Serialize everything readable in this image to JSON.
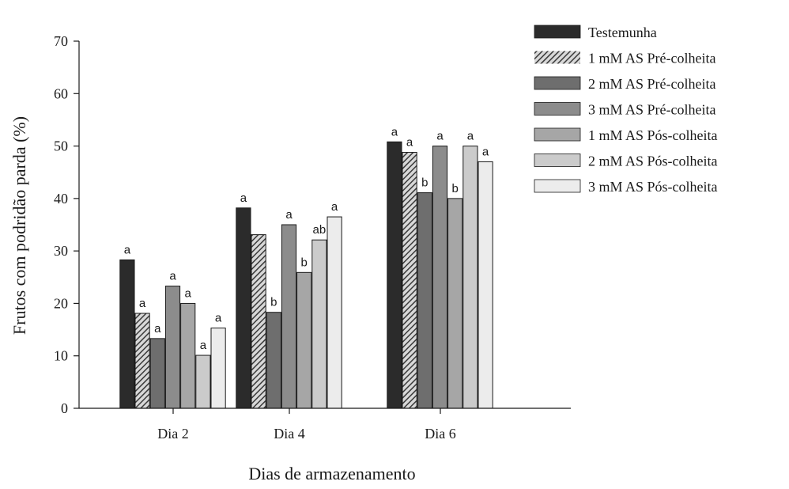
{
  "chart_data": {
    "type": "bar",
    "title": "",
    "xlabel": "Dias de armazenamento",
    "ylabel": "Frutos com podridão parda (%)",
    "ylim": [
      0,
      70
    ],
    "yticks": [
      0,
      10,
      20,
      30,
      40,
      50,
      60,
      70
    ],
    "grid": false,
    "legend_position": "top-right",
    "categories": [
      "Dia 2",
      "Dia 4",
      "Dia 6"
    ],
    "series": [
      {
        "name": "Testemunha",
        "fill": "#2b2b2b",
        "pattern": "solid",
        "values": [
          28.3,
          38.2,
          50.8
        ],
        "labels": [
          "a",
          "a",
          "a"
        ]
      },
      {
        "name": "1 mM AS Pré-colheita",
        "fill": "#555555",
        "pattern": "hatch",
        "values": [
          18.1,
          33.1,
          48.8
        ],
        "labels": [
          "a",
          "",
          "a"
        ]
      },
      {
        "name": "2 mM AS Pré-colheita",
        "fill": "#6e6e6e",
        "pattern": "solid",
        "values": [
          13.3,
          18.3,
          41.1
        ],
        "labels": [
          "a",
          "b",
          "b"
        ]
      },
      {
        "name": "3 mM AS Pré-colheita",
        "fill": "#8c8c8c",
        "pattern": "solid",
        "values": [
          23.3,
          35.0,
          50.0
        ],
        "labels": [
          "a",
          "a",
          "a"
        ]
      },
      {
        "name": "1 mM AS Pós-colheita",
        "fill": "#a6a6a6",
        "pattern": "solid",
        "values": [
          20.0,
          25.9,
          40.0
        ],
        "labels": [
          "a",
          "b",
          "b"
        ]
      },
      {
        "name": "2 mM AS Pós-colheita",
        "fill": "#cbcbcb",
        "pattern": "solid",
        "values": [
          10.1,
          32.1,
          50.0
        ],
        "labels": [
          "a",
          "ab",
          "a"
        ]
      },
      {
        "name": "3 mM AS Pós-colheita",
        "fill": "#ececec",
        "pattern": "solid",
        "values": [
          15.3,
          36.5,
          47.0
        ],
        "labels": [
          "a",
          "a",
          "a"
        ]
      }
    ]
  }
}
